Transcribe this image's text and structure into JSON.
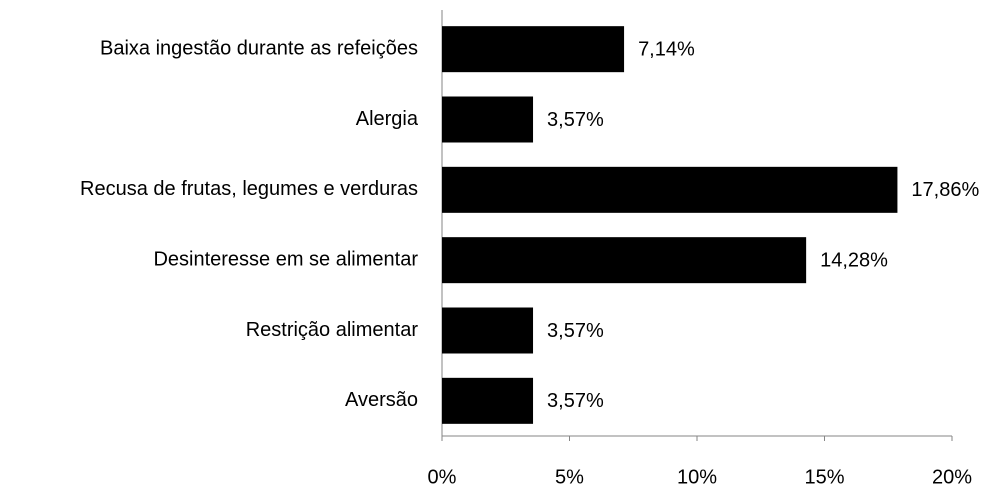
{
  "chart_data": {
    "type": "bar",
    "orientation": "horizontal",
    "categories": [
      "Baixa ingestão durante as refeições",
      "Alergia",
      "Recusa de frutas, legumes e verduras",
      "Desinteresse em se alimentar",
      "Restrição alimentar",
      "Aversão"
    ],
    "values": [
      7.14,
      3.57,
      17.86,
      14.28,
      3.57,
      3.57
    ],
    "value_labels": [
      "7,14%",
      "3,57%",
      "17,86%",
      "14,28%",
      "3,57%",
      "3,57%"
    ],
    "color": "#000000",
    "xlim": [
      0,
      20
    ],
    "xticks": [
      {
        "value": 0,
        "label": "0%"
      },
      {
        "value": 5,
        "label": "5%"
      },
      {
        "value": 10,
        "label": "10%"
      },
      {
        "value": 15,
        "label": "15%"
      },
      {
        "value": 20,
        "label": "20%"
      }
    ],
    "grid": false
  }
}
